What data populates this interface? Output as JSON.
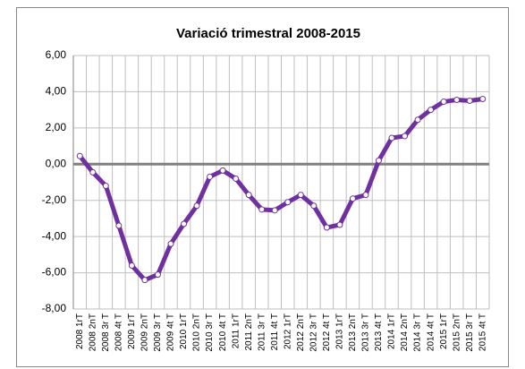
{
  "chart_data": {
    "type": "line",
    "title": "Variació trimestral 2008-2015",
    "categories": [
      "2008 1rT",
      "2008 2nT",
      "2008 3r T",
      "2008 4t T",
      "2009 1rT",
      "2009 2nT",
      "2009 3r T",
      "2009 4t T",
      "2010 1rT",
      "2010 2nT",
      "2010 3r T",
      "2010 4t T",
      "2011 1rT",
      "2011 2nT",
      "2011 3r T",
      "2011 4t T",
      "2012 1rT",
      "2012 2nT",
      "2012 3r T",
      "2012 4t T",
      "2013 1rT",
      "2013 2nT",
      "2013 3r T",
      "2013 4t T",
      "2014 1rT",
      "2014 2nT",
      "2014 3r T",
      "2014 4t T",
      "2015 1rT",
      "2015 2nT",
      "2015 3r T",
      "2015 4t T"
    ],
    "values": [
      0.45,
      -0.45,
      -1.2,
      -3.4,
      -5.6,
      -6.4,
      -6.1,
      -4.4,
      -3.3,
      -2.3,
      -0.7,
      -0.35,
      -0.8,
      -1.7,
      -2.5,
      -2.55,
      -2.1,
      -1.7,
      -2.3,
      -3.5,
      -3.35,
      -1.9,
      -1.7,
      0.2,
      1.45,
      1.55,
      2.45,
      3.0,
      3.45,
      3.55,
      3.5,
      3.6
    ],
    "color": "#7030a0",
    "ylim": [
      -8,
      6
    ],
    "yticks": [
      {
        "value": -8,
        "label": "-8,00"
      },
      {
        "value": -6,
        "label": "-6,00"
      },
      {
        "value": -4,
        "label": "-4,00"
      },
      {
        "value": -2,
        "label": "-2,00"
      },
      {
        "value": 0,
        "label": "0,00"
      },
      {
        "value": 2,
        "label": "2,00"
      },
      {
        "value": 4,
        "label": "4,00"
      },
      {
        "value": 6,
        "label": "6,00"
      }
    ],
    "grid": true
  }
}
